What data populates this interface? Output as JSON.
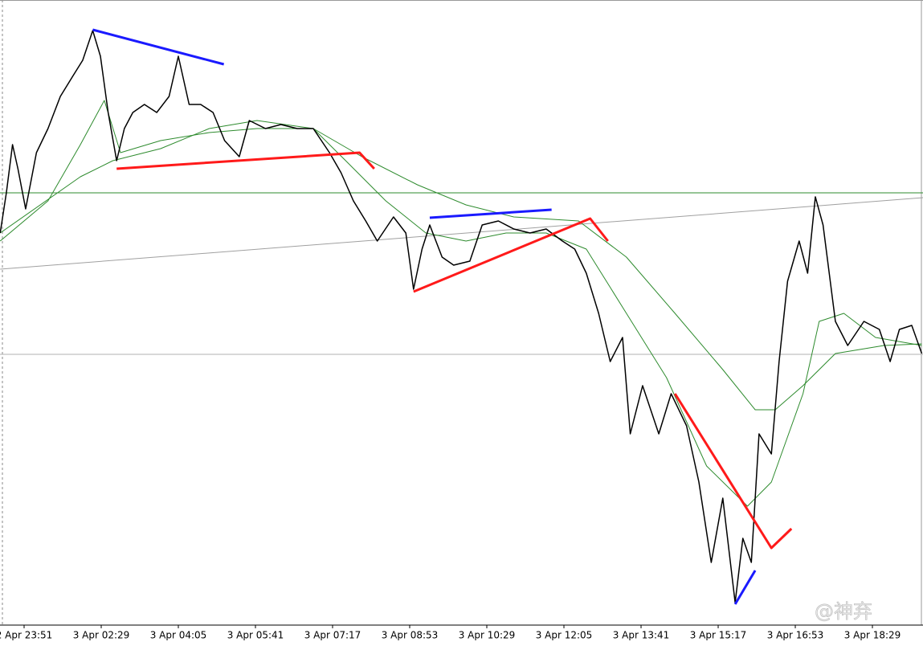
{
  "chart_data": {
    "type": "line",
    "xlim": [
      -0.3125,
      11.656
    ],
    "ylim": [
      0,
      778
    ],
    "xticks": [
      {
        "value": 0,
        "label": "2 Apr 23:51"
      },
      {
        "value": 1,
        "label": "3 Apr 02:29"
      },
      {
        "value": 2,
        "label": "3 Apr 04:05"
      },
      {
        "value": 3,
        "label": "3 Apr 05:41"
      },
      {
        "value": 4,
        "label": "3 Apr 07:17"
      },
      {
        "value": 5,
        "label": "3 Apr 08:53"
      },
      {
        "value": 6,
        "label": "3 Apr 10:29"
      },
      {
        "value": 7,
        "label": "3 Apr 12:05"
      },
      {
        "value": 8,
        "label": "3 Apr 13:41"
      },
      {
        "value": 9,
        "label": "3 Apr 15:17"
      },
      {
        "value": 10,
        "label": "3 Apr 16:53"
      },
      {
        "value": 11,
        "label": "3 Apr 18:29"
      }
    ],
    "hlines": [
      {
        "value": 538,
        "color": "#2e8b2e"
      },
      {
        "value": 337,
        "color": "#b0b0b0"
      }
    ],
    "series": [
      {
        "color": "#a0a0a0",
        "width": 1,
        "x": [
          -0.31,
          11.66
        ],
        "values": [
          443,
          532
        ]
      },
      {
        "color": "#2e8b2e",
        "width": 1,
        "x": [
          -0.31,
          0.73,
          1.15,
          1.77,
          2.4,
          3.02,
          3.75,
          4.38,
          5.1,
          5.73,
          6.35,
          7.19,
          7.81,
          8.44,
          9.06,
          9.48,
          9.74,
          10.1,
          10.52,
          11.15,
          11.64
        ],
        "values": [
          488,
          558,
          578,
          593,
          618,
          628,
          618,
          583,
          548,
          523,
          508,
          503,
          458,
          388,
          318,
          268,
          268,
          298,
          338,
          348,
          350
        ]
      },
      {
        "color": "#2e8b2e",
        "width": 1,
        "x": [
          -0.31,
          0.31,
          0.73,
          1.04,
          1.25,
          1.77,
          2.4,
          3.02,
          3.75,
          4.17,
          4.69,
          5.21,
          5.73,
          6.25,
          6.77,
          7.29,
          7.81,
          8.33,
          8.85,
          9.38,
          9.69,
          10.1,
          10.31,
          10.63,
          11.04,
          11.64
        ],
        "values": [
          478,
          528,
          598,
          653,
          588,
          603,
          613,
          618,
          618,
          578,
          528,
          488,
          478,
          488,
          488,
          468,
          388,
          308,
          198,
          148,
          178,
          288,
          378,
          388,
          358,
          348
        ]
      },
      {
        "color": "#000000",
        "width": 1.5,
        "x": [
          -0.31,
          -0.23,
          -0.15,
          -0.08,
          0.02,
          0.16,
          0.31,
          0.47,
          0.63,
          0.76,
          0.89,
          0.99,
          1.09,
          1.2,
          1.3,
          1.41,
          1.56,
          1.72,
          1.88,
          2.0,
          2.14,
          2.29,
          2.45,
          2.6,
          2.79,
          2.92,
          3.13,
          3.33,
          3.54,
          3.75,
          3.96,
          4.11,
          4.27,
          4.43,
          4.58,
          4.79,
          4.95,
          5.05,
          5.16,
          5.26,
          5.42,
          5.57,
          5.78,
          5.94,
          6.15,
          6.35,
          6.56,
          6.77,
          6.98,
          7.14,
          7.29,
          7.45,
          7.6,
          7.76,
          7.86,
          8.02,
          8.23,
          8.39,
          8.59,
          8.75,
          8.91,
          9.06,
          9.22,
          9.32,
          9.43,
          9.53,
          9.69,
          9.79,
          9.9,
          10.05,
          10.16,
          10.26,
          10.36,
          10.52,
          10.68,
          10.89,
          11.09,
          11.23,
          11.35,
          11.51,
          11.64
        ],
        "values": [
          488,
          538,
          598,
          568,
          518,
          588,
          618,
          658,
          683,
          703,
          740,
          708,
          638,
          578,
          618,
          638,
          648,
          638,
          658,
          708,
          648,
          648,
          638,
          603,
          583,
          628,
          618,
          623,
          618,
          618,
          588,
          563,
          528,
          503,
          478,
          508,
          488,
          418,
          468,
          498,
          458,
          448,
          453,
          498,
          503,
          493,
          488,
          493,
          478,
          468,
          438,
          388,
          328,
          358,
          238,
          298,
          238,
          288,
          248,
          178,
          78,
          158,
          28,
          108,
          78,
          238,
          213,
          328,
          428,
          478,
          438,
          533,
          498,
          378,
          348,
          378,
          368,
          328,
          368,
          373,
          338
        ]
      },
      {
        "color": "#ff1a1a",
        "width": 3,
        "x": [
          1.2,
          4.35,
          4.54
        ],
        "values": [
          568,
          588,
          568
        ]
      },
      {
        "color": "#ff1a1a",
        "width": 3,
        "x": [
          5.05,
          7.34,
          7.57
        ],
        "values": [
          415,
          506,
          478
        ]
      },
      {
        "color": "#ff1a1a",
        "width": 3,
        "x": [
          8.44,
          9.69,
          9.95
        ],
        "values": [
          288,
          96,
          120
        ]
      },
      {
        "color": "#1a1aff",
        "width": 3,
        "x": [
          0.89,
          2.59
        ],
        "values": [
          741,
          698
        ]
      },
      {
        "color": "#1a1aff",
        "width": 3,
        "x": [
          5.26,
          6.84
        ],
        "values": [
          507,
          517
        ]
      },
      {
        "color": "#1a1aff",
        "width": 3,
        "x": [
          9.22,
          9.48
        ],
        "values": [
          26,
          68
        ]
      }
    ],
    "watermark": "@神弃"
  }
}
